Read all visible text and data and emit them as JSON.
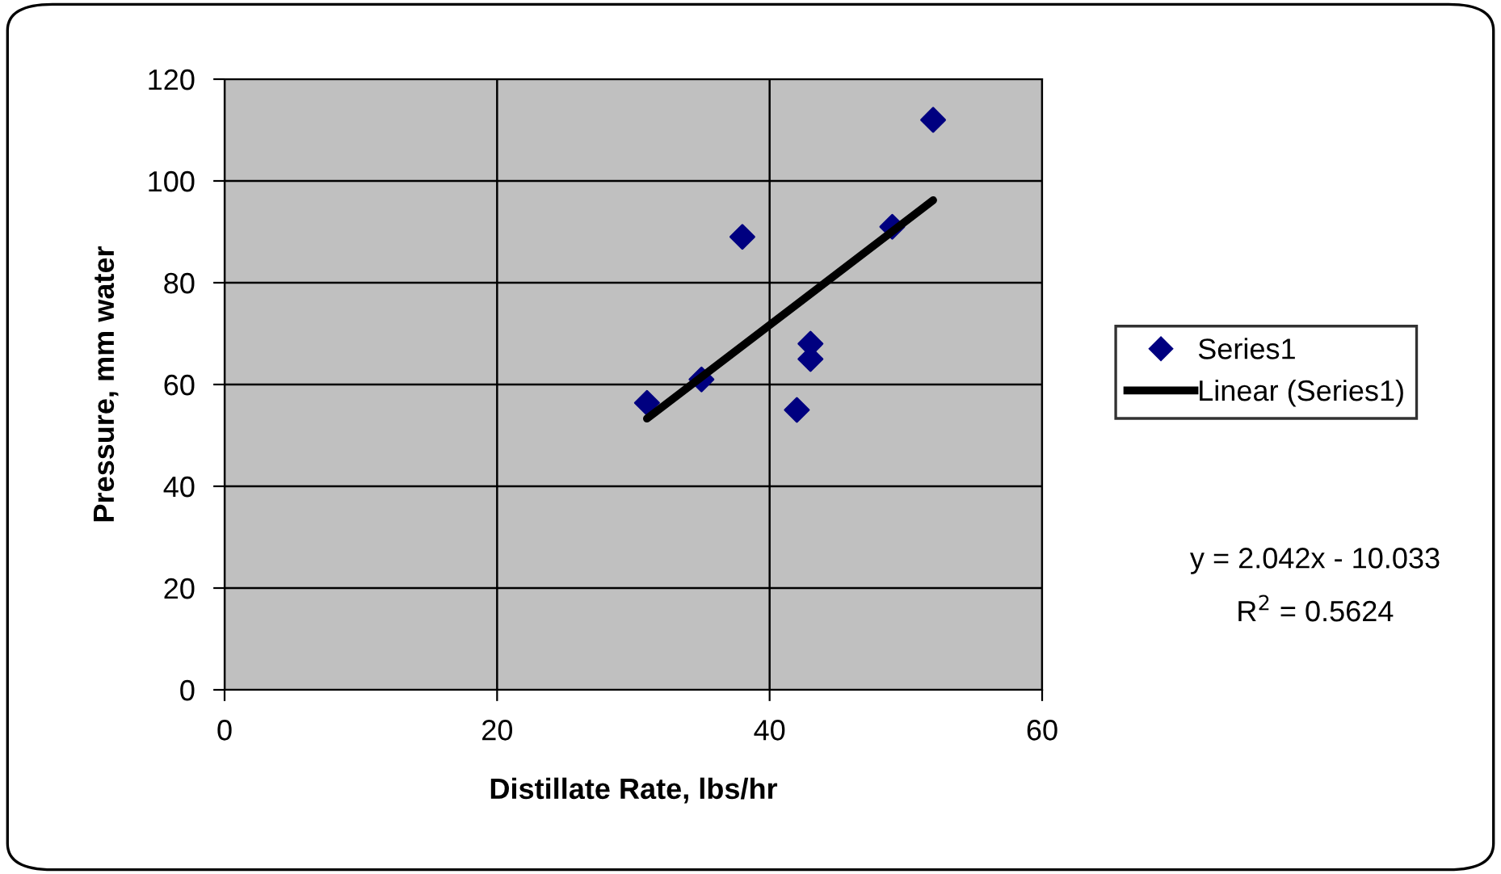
{
  "chart_data": {
    "type": "scatter",
    "xlabel": "Distillate Rate, lbs/hr",
    "ylabel": "Pressure, mm water",
    "series": [
      {
        "name": "Series1",
        "color": "#000080",
        "marker": "diamond",
        "x": [
          31,
          35,
          38,
          42,
          43,
          43,
          49,
          52
        ],
        "values": [
          56.4,
          61,
          89,
          55,
          68,
          65,
          91,
          112
        ]
      },
      {
        "name": "Linear (Series1)",
        "type": "line",
        "color": "#000000",
        "marker": "none",
        "line_style": "solid",
        "x": [
          31,
          52
        ],
        "values": [
          53.3,
          96.2
        ]
      }
    ],
    "annotations": [
      "y = 2.042x - 10.033",
      "R$^{2}$ = 0.5624"
    ],
    "xlim": [
      0,
      60
    ],
    "xticks": [
      0,
      20,
      40,
      60
    ],
    "ylim": [
      0,
      120
    ],
    "yticks": [
      0,
      20,
      40,
      60,
      80,
      100,
      120
    ],
    "grid": true,
    "legend": "right"
  }
}
